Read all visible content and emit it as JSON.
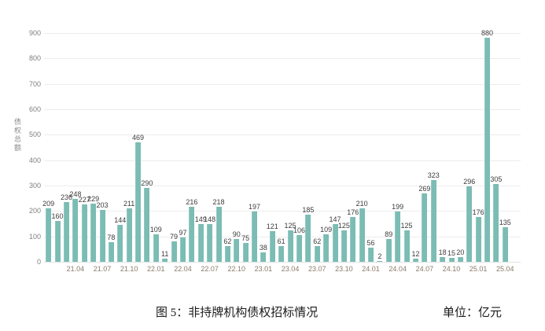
{
  "figure": {
    "caption": "图 5：非持牌机构债权招标情况",
    "unit_label": "单位：亿元"
  },
  "chart_data": {
    "type": "bar",
    "title": "图 5：非持牌机构债权招标情况",
    "unit": "亿元",
    "xlabel": "",
    "ylabel": "债权总额",
    "ylim": [
      0,
      900
    ],
    "yticks": [
      0,
      100,
      200,
      300,
      400,
      500,
      600,
      700,
      800,
      900
    ],
    "grid": "horizontal",
    "legend": "none",
    "bar_color": "#7bbcb4",
    "categories": [
      "21.01",
      "21.02",
      "21.03",
      "21.04",
      "21.05",
      "21.06",
      "21.07",
      "21.08",
      "21.09",
      "21.10",
      "21.11",
      "21.12",
      "22.01",
      "22.02",
      "22.03",
      "22.04",
      "22.05",
      "22.06",
      "22.07",
      "22.08",
      "22.09",
      "22.10",
      "22.11",
      "22.12",
      "23.01",
      "23.02",
      "23.03",
      "23.04",
      "23.05",
      "23.06",
      "23.07",
      "23.08",
      "23.09",
      "23.10",
      "23.11",
      "23.12",
      "24.01",
      "24.02",
      "24.03",
      "24.04",
      "24.05",
      "24.06",
      "24.07",
      "24.08",
      "24.09",
      "24.10",
      "24.11",
      "24.12",
      "25.01",
      "25.02",
      "25.03",
      "25.04"
    ],
    "values": [
      209,
      160,
      236,
      248,
      227,
      229,
      203,
      78,
      144,
      211,
      469,
      290,
      109,
      11,
      79,
      97,
      216,
      149,
      148,
      218,
      62,
      90,
      75,
      197,
      38,
      121,
      61,
      125,
      106,
      185,
      62,
      109,
      147,
      125,
      176,
      210,
      56,
      2,
      89,
      199,
      125,
      12,
      269,
      323,
      18,
      15,
      20,
      296,
      176,
      880,
      305,
      135
    ],
    "data_labels_shown": true,
    "x_tick_labels": [
      "21.04",
      "21.07",
      "21.10",
      "22.01",
      "22.04",
      "22.07",
      "22.10",
      "23.01",
      "23.04",
      "23.07",
      "23.10",
      "24.01",
      "24.04",
      "24.07",
      "24.10",
      "25.01",
      "25.04"
    ],
    "x_tick_indices": [
      3,
      6,
      9,
      12,
      15,
      18,
      21,
      24,
      27,
      30,
      33,
      36,
      39,
      42,
      45,
      48,
      51
    ]
  },
  "colors": {
    "bar": "#7bbcb4",
    "gridline": "#ececec",
    "y_tick_text": "#7f7f7f",
    "x_tick_text": "#8b7b6b",
    "data_label_text": "#3c3c3c",
    "caption_text": "#1a1a1a",
    "background": "#ffffff"
  }
}
